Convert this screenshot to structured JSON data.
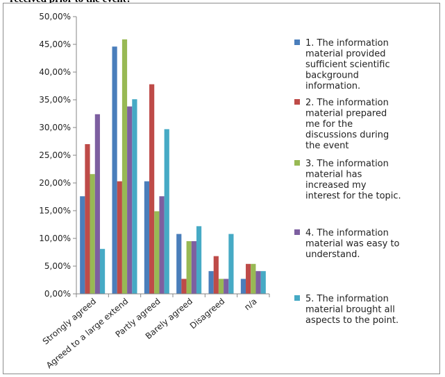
{
  "heading": "received prior to the event?",
  "chart_data": {
    "type": "bar",
    "title": "",
    "xlabel": "",
    "ylabel": "",
    "ylim": [
      0,
      50
    ],
    "yticks": [
      "0,00%",
      "5,00%",
      "10,00%",
      "15,00%",
      "20,00%",
      "25,00%",
      "30,00%",
      "35,00%",
      "40,00%",
      "45,00%",
      "50,00%"
    ],
    "grid": false,
    "legend_position": "right",
    "categories": [
      "Strongly agreed",
      "Agreed to a large extend",
      "Partly agreed",
      "Barely agreed",
      "Disagreed",
      "n/a"
    ],
    "series": [
      {
        "name": "1. The information material provided sufficient scientific background information.",
        "legend_lines": [
          "1. The information",
          "material provided",
          "sufficient scientific",
          "background",
          "information."
        ],
        "color": "#4a7ebb",
        "values": [
          17.6,
          44.6,
          20.3,
          10.8,
          4.1,
          2.7
        ]
      },
      {
        "name": "2. The information material prepared me for the discussions during the event",
        "legend_lines": [
          "2. The information",
          "material prepared",
          "me for the",
          "discussions during",
          "the event"
        ],
        "color": "#be4b48",
        "values": [
          27.0,
          20.3,
          37.8,
          2.7,
          6.8,
          5.4
        ]
      },
      {
        "name": "3. The information material has increased my interest for the topic.",
        "legend_lines": [
          "3. The information",
          "material has",
          "increased my",
          "interest for the topic."
        ],
        "color": "#98b954",
        "values": [
          21.6,
          45.9,
          14.9,
          9.5,
          2.7,
          5.4
        ]
      },
      {
        "name": "4. The information material was easy to understand.",
        "legend_lines": [
          "4. The information",
          "material was easy to",
          "understand."
        ],
        "color": "#7d5fa0",
        "values": [
          32.4,
          33.8,
          17.6,
          9.5,
          2.7,
          4.1
        ]
      },
      {
        "name": "5. The information material brought all aspects to the point.",
        "legend_lines": [
          "5. The information",
          "material brought all",
          "aspects to the point."
        ],
        "color": "#46aac5",
        "values": [
          8.1,
          35.1,
          29.7,
          12.2,
          10.8,
          4.1
        ]
      }
    ]
  }
}
